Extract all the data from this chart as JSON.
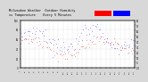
{
  "title_text": "Milwaukee Weather  Outdoor Humidity",
  "subtitle_text": "vs Temperature",
  "sub2_text": "Every 5 Minutes",
  "title_fontsize": 2.8,
  "background_color": "#d8d8d8",
  "plot_bg_color": "#ffffff",
  "grid_color": "#bbbbbb",
  "blue_color": "#0000dd",
  "red_color": "#dd0000",
  "legend_red_color": "#ff0000",
  "legend_blue_color": "#0000ff",
  "ylim_left": [
    0,
    100
  ],
  "ylim_right": [
    -10,
    80
  ],
  "n_points": 288,
  "seed": 7
}
